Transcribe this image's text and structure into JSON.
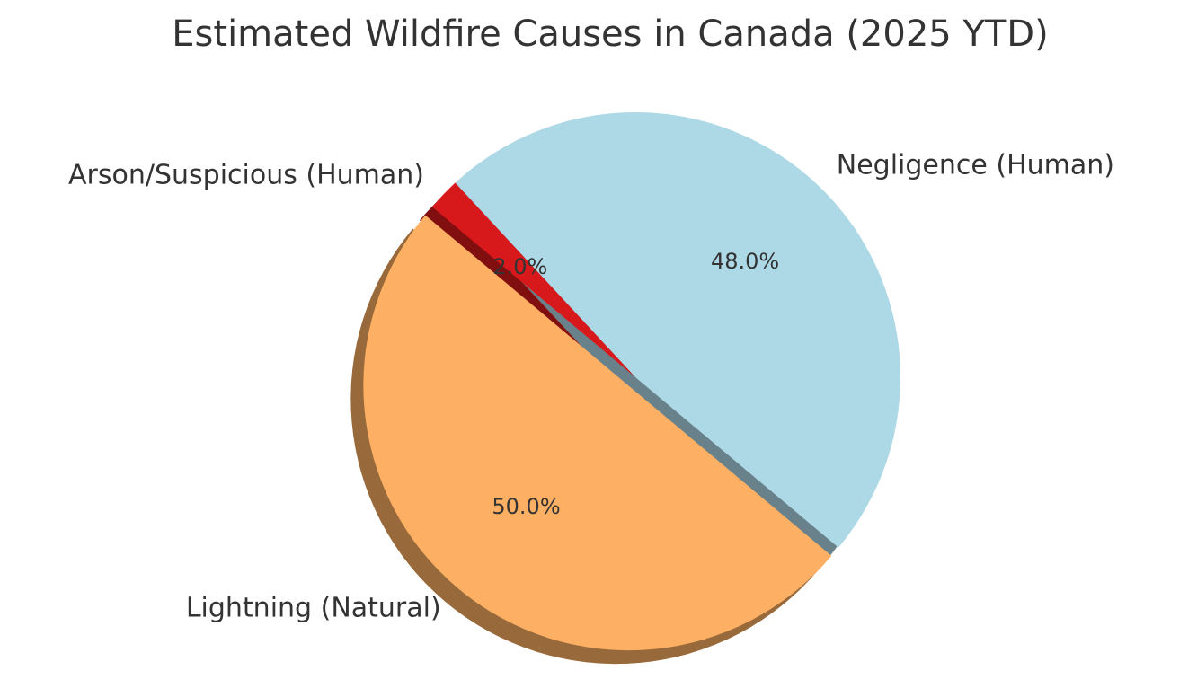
{
  "chart_data": {
    "type": "pie",
    "title": "Estimated Wildfire Causes in Canada (2025 YTD)",
    "categories": [
      "Lightning (Natural)",
      "Negligence (Human)",
      "Arson/Suspicious (Human)"
    ],
    "values": [
      50,
      48,
      2
    ],
    "value_labels": [
      "50.0%",
      "48.0%",
      "2.0%"
    ],
    "colors": [
      "#fdb063",
      "#add8e6",
      "#d7191c"
    ]
  }
}
